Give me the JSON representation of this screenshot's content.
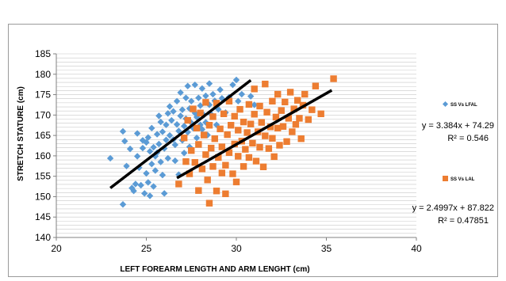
{
  "chart_data": {
    "type": "scatter",
    "xlabel": "LEFT FOREARM LENGTH AND ARM LENGHT (cm)",
    "ylabel": "STRETCH STATURE (cm)",
    "xlim": [
      20,
      40
    ],
    "ylim": [
      140,
      185
    ],
    "xticks": [
      "20",
      "25",
      "30",
      "35",
      "40"
    ],
    "yticks": [
      "140",
      "145",
      "150",
      "155",
      "160",
      "165",
      "170",
      "175",
      "180",
      "185"
    ],
    "grid": true,
    "legend_position": "right",
    "series": [
      {
        "name": "SS Vs LFAL",
        "marker": "diamond",
        "color": "#5b9bd5",
        "trendline": {
          "slope": 3.384,
          "intercept": 74.29,
          "x_range": [
            23,
            30.8
          ],
          "equation": "y = 3.384x + 74.29",
          "r_squared": "R² = 0.546"
        },
        "points": [
          [
            23.0,
            159.4
          ],
          [
            23.7,
            148.1
          ],
          [
            23.7,
            166.0
          ],
          [
            23.8,
            163.6
          ],
          [
            23.9,
            157.5
          ],
          [
            24.1,
            161.7
          ],
          [
            24.2,
            152.1
          ],
          [
            24.3,
            151.4
          ],
          [
            24.4,
            153.1
          ],
          [
            24.5,
            165.5
          ],
          [
            24.5,
            159.9
          ],
          [
            24.6,
            157.1
          ],
          [
            24.7,
            152.8
          ],
          [
            24.8,
            163.8
          ],
          [
            24.8,
            161.9
          ],
          [
            24.9,
            150.8
          ],
          [
            25.0,
            163.3
          ],
          [
            25.0,
            155.7
          ],
          [
            25.1,
            153.5
          ],
          [
            25.1,
            164.5
          ],
          [
            25.2,
            161.1
          ],
          [
            25.2,
            150.2
          ],
          [
            25.3,
            158.0
          ],
          [
            25.3,
            166.8
          ],
          [
            25.4,
            152.5
          ],
          [
            25.4,
            162.1
          ],
          [
            25.5,
            156.4
          ],
          [
            25.5,
            159.9
          ],
          [
            25.6,
            160.8
          ],
          [
            25.6,
            165.3
          ],
          [
            25.7,
            162.9
          ],
          [
            25.7,
            169.8
          ],
          [
            25.8,
            168.3
          ],
          [
            25.8,
            158.5
          ],
          [
            25.9,
            155.3
          ],
          [
            25.9,
            165.9
          ],
          [
            26.0,
            150.8
          ],
          [
            26.0,
            161.8
          ],
          [
            26.1,
            163.9
          ],
          [
            26.1,
            167.6
          ],
          [
            26.2,
            159.4
          ],
          [
            26.2,
            170.4
          ],
          [
            26.3,
            165.0
          ],
          [
            26.3,
            172.1
          ],
          [
            26.4,
            168.7
          ],
          [
            26.5,
            164.0
          ],
          [
            26.5,
            170.9
          ],
          [
            26.6,
            162.7
          ],
          [
            26.6,
            158.8
          ],
          [
            26.7,
            167.7
          ],
          [
            26.7,
            173.4
          ],
          [
            26.8,
            155.4
          ],
          [
            26.8,
            166.1
          ],
          [
            26.9,
            169.8
          ],
          [
            26.9,
            175.5
          ],
          [
            27.0,
            163.8
          ],
          [
            27.0,
            171.3
          ],
          [
            27.1,
            167.3
          ],
          [
            27.1,
            160.7
          ],
          [
            27.2,
            174.2
          ],
          [
            27.2,
            169.1
          ],
          [
            27.3,
            165.8
          ],
          [
            27.3,
            177.1
          ],
          [
            27.4,
            171.6
          ],
          [
            27.4,
            162.2
          ],
          [
            27.5,
            168.1
          ],
          [
            27.5,
            173.4
          ],
          [
            27.6,
            166.8
          ],
          [
            27.7,
            177.4
          ],
          [
            27.7,
            170.5
          ],
          [
            27.8,
            164.4
          ],
          [
            27.8,
            169.5
          ],
          [
            27.9,
            174.2
          ],
          [
            28.0,
            167.6
          ],
          [
            28.0,
            172.3
          ],
          [
            28.1,
            166.5
          ],
          [
            28.1,
            176.5
          ],
          [
            28.2,
            170.0
          ],
          [
            28.3,
            174.7
          ],
          [
            28.3,
            168.2
          ],
          [
            28.4,
            165.1
          ],
          [
            28.5,
            172.5
          ],
          [
            28.5,
            177.7
          ],
          [
            28.6,
            170.2
          ],
          [
            28.7,
            175.1
          ],
          [
            28.8,
            173.5
          ],
          [
            28.9,
            167.6
          ],
          [
            29.0,
            171.4
          ],
          [
            29.1,
            176.2
          ],
          [
            29.2,
            174.1
          ],
          [
            29.4,
            170.6
          ],
          [
            29.6,
            174.4
          ],
          [
            29.8,
            177.4
          ],
          [
            30.0,
            178.6
          ],
          [
            30.1,
            173.4
          ],
          [
            30.3,
            175.1
          ],
          [
            30.8,
            174.6
          ],
          [
            31.0,
            172.5
          ]
        ]
      },
      {
        "name": "SS Vs LAL",
        "marker": "square",
        "color": "#ed7d31",
        "trendline": {
          "slope": 2.4997,
          "intercept": 87.822,
          "x_range": [
            26.7,
            35.3
          ],
          "equation": "y = 2.4997x + 87.822",
          "r_squared": "R² = 0.47851"
        },
        "points": [
          [
            26.8,
            153.1
          ],
          [
            27.1,
            164.4
          ],
          [
            27.2,
            158.6
          ],
          [
            27.3,
            168.7
          ],
          [
            27.4,
            155.6
          ],
          [
            27.5,
            161.3
          ],
          [
            27.6,
            171.5
          ],
          [
            27.7,
            158.4
          ],
          [
            27.8,
            166.8
          ],
          [
            27.9,
            151.5
          ],
          [
            27.9,
            162.8
          ],
          [
            28.0,
            170.5
          ],
          [
            28.1,
            156.8
          ],
          [
            28.2,
            165.1
          ],
          [
            28.3,
            160.3
          ],
          [
            28.3,
            173.1
          ],
          [
            28.4,
            154.1
          ],
          [
            28.5,
            148.4
          ],
          [
            28.5,
            167.5
          ],
          [
            28.6,
            161.9
          ],
          [
            28.7,
            157.4
          ],
          [
            28.7,
            169.6
          ],
          [
            28.8,
            164.2
          ],
          [
            28.9,
            151.4
          ],
          [
            28.9,
            172.9
          ],
          [
            29.0,
            159.6
          ],
          [
            29.1,
            166.6
          ],
          [
            29.2,
            155.8
          ],
          [
            29.2,
            162.2
          ],
          [
            29.3,
            170.3
          ],
          [
            29.4,
            157.7
          ],
          [
            29.4,
            150.7
          ],
          [
            29.5,
            165.2
          ],
          [
            29.6,
            160.8
          ],
          [
            29.6,
            173.4
          ],
          [
            29.7,
            167.5
          ],
          [
            29.8,
            155.6
          ],
          [
            29.9,
            162.9
          ],
          [
            29.9,
            169.7
          ],
          [
            30.0,
            153.6
          ],
          [
            30.1,
            159.9
          ],
          [
            30.1,
            166.3
          ],
          [
            30.2,
            171.4
          ],
          [
            30.3,
            163.6
          ],
          [
            30.4,
            157.4
          ],
          [
            30.4,
            168.3
          ],
          [
            30.5,
            161.6
          ],
          [
            30.6,
            165.7
          ],
          [
            30.7,
            172.6
          ],
          [
            30.7,
            159.6
          ],
          [
            30.8,
            167.8
          ],
          [
            30.9,
            163.1
          ],
          [
            31.0,
            170.2
          ],
          [
            31.0,
            176.4
          ],
          [
            31.1,
            158.7
          ],
          [
            31.2,
            165.9
          ],
          [
            31.3,
            162.1
          ],
          [
            31.3,
            172.2
          ],
          [
            31.4,
            168.2
          ],
          [
            31.5,
            157.3
          ],
          [
            31.6,
            164.9
          ],
          [
            31.6,
            177.6
          ],
          [
            31.7,
            170.7
          ],
          [
            31.8,
            161.8
          ],
          [
            31.9,
            167.1
          ],
          [
            32.0,
            173.4
          ],
          [
            32.0,
            164.3
          ],
          [
            32.1,
            159.8
          ],
          [
            32.2,
            169.5
          ],
          [
            32.3,
            166.8
          ],
          [
            32.3,
            175.1
          ],
          [
            32.4,
            162.6
          ],
          [
            32.5,
            171.1
          ],
          [
            32.6,
            167.2
          ],
          [
            32.7,
            173.2
          ],
          [
            32.8,
            163.5
          ],
          [
            32.9,
            169.2
          ],
          [
            33.0,
            175.6
          ],
          [
            33.1,
            165.9
          ],
          [
            33.2,
            171.5
          ],
          [
            33.3,
            167.7
          ],
          [
            33.4,
            173.6
          ],
          [
            33.5,
            169.2
          ],
          [
            33.6,
            164.2
          ],
          [
            33.7,
            172.4
          ],
          [
            33.8,
            175.1
          ],
          [
            34.0,
            168.9
          ],
          [
            34.2,
            171.3
          ],
          [
            34.4,
            177.1
          ],
          [
            34.7,
            170.3
          ],
          [
            35.4,
            178.9
          ]
        ]
      }
    ]
  }
}
